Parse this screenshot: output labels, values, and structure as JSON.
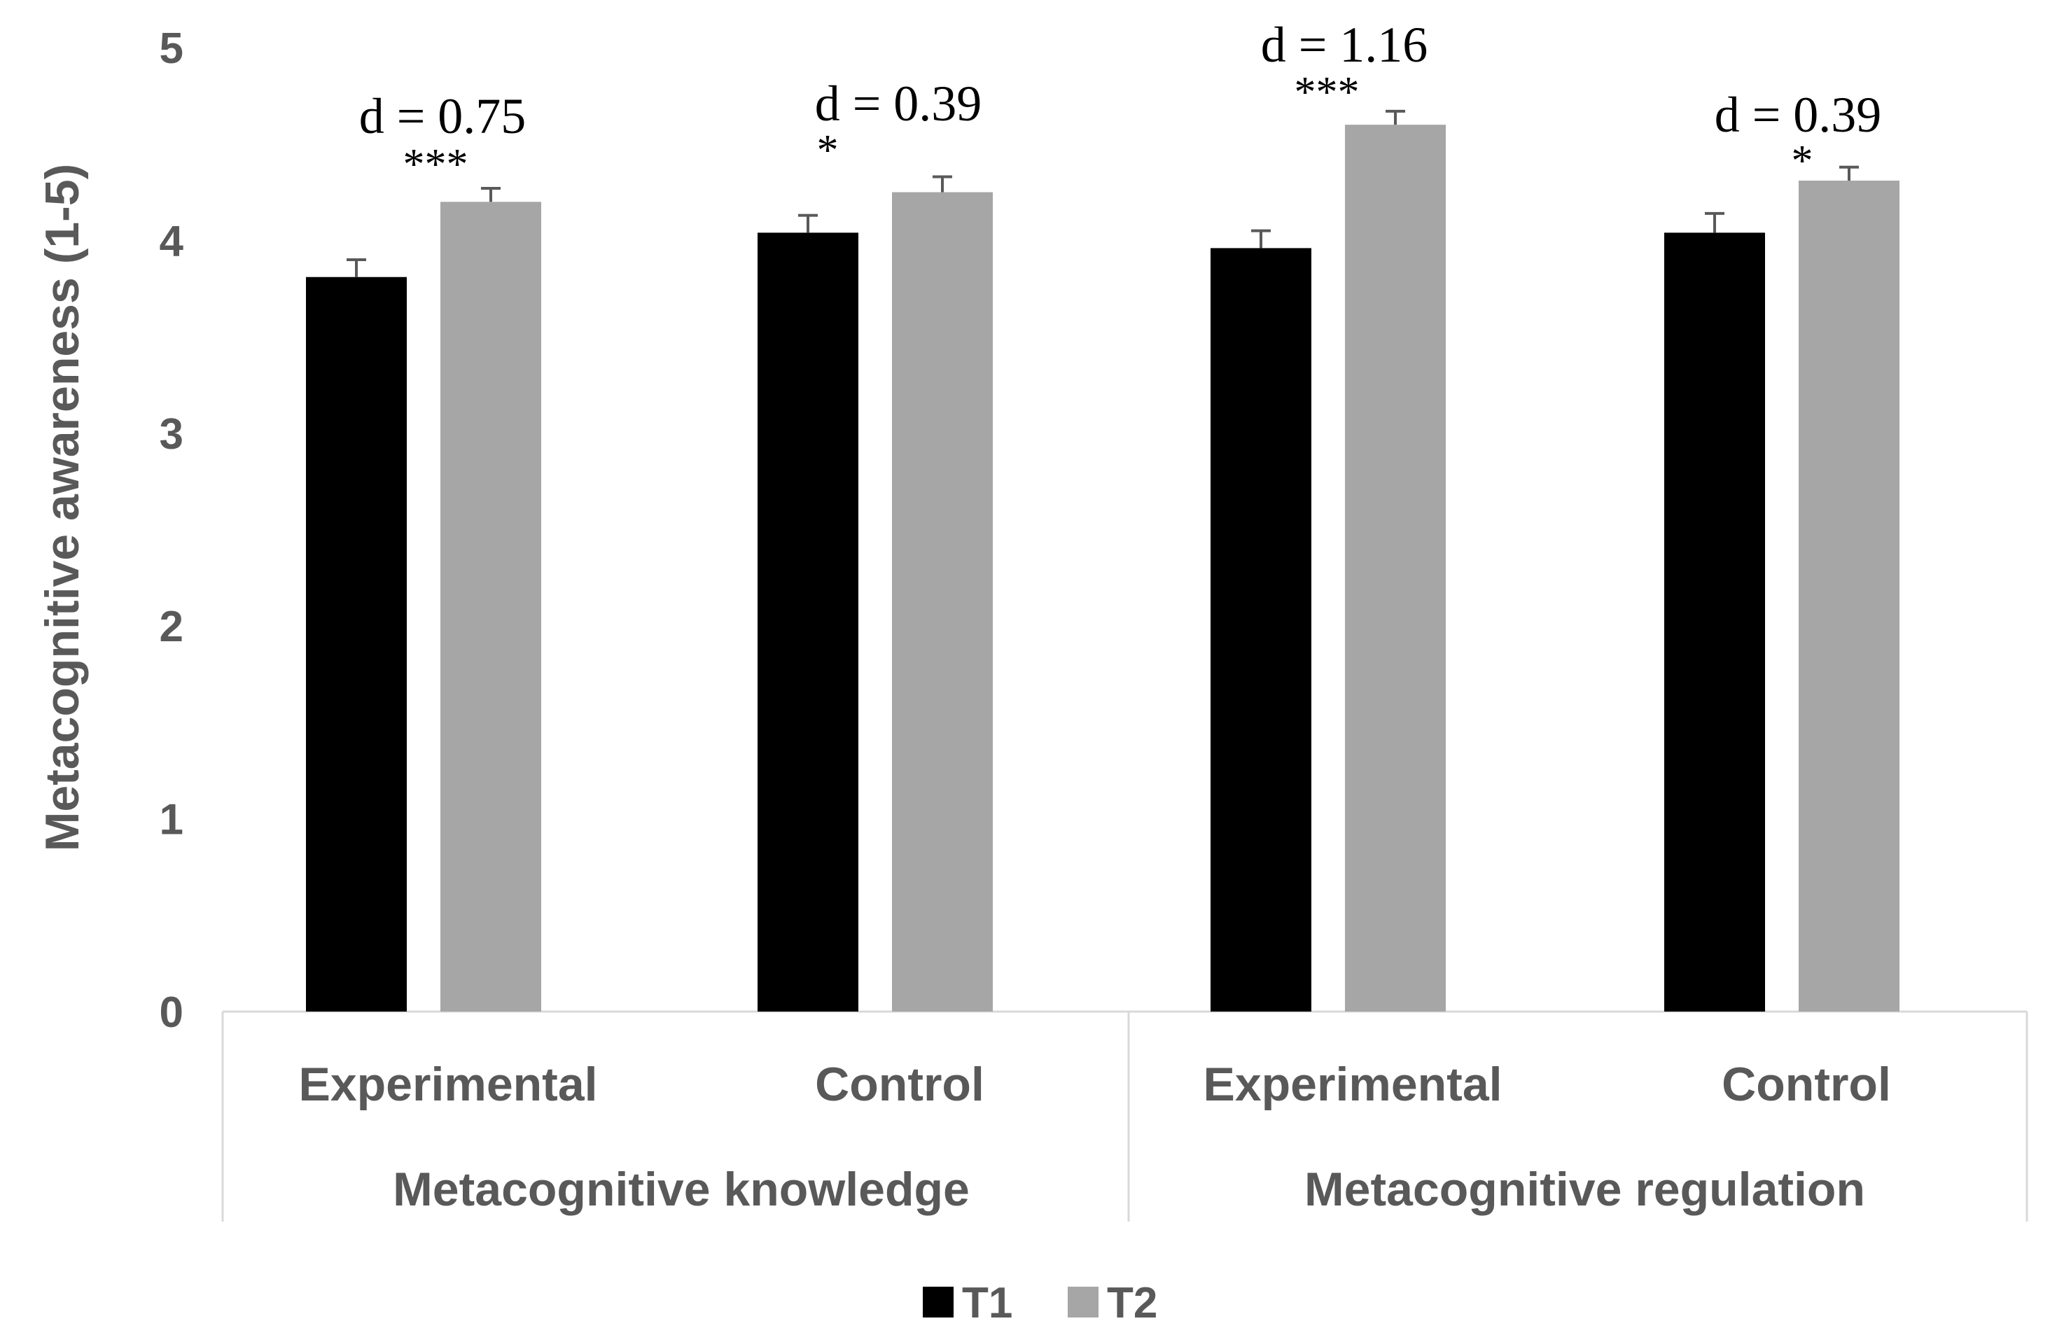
{
  "chart_data": {
    "type": "bar",
    "ylabel": "Metacognitive awareness (1-5)",
    "ylim": [
      0,
      5
    ],
    "yticks": [
      "0",
      "1",
      "2",
      "3",
      "4",
      "5"
    ],
    "categories": [
      "Experimental",
      "Control",
      "Experimental",
      "Control"
    ],
    "groups": [
      {
        "label": "Metacognitive knowledge",
        "categories": [
          "Experimental",
          "Control"
        ]
      },
      {
        "label": "Metacognitive regulation",
        "categories": [
          "Experimental",
          "Control"
        ]
      }
    ],
    "series": [
      {
        "name": "T1",
        "color": "#000000",
        "values": [
          3.81,
          4.04,
          3.96,
          4.04
        ],
        "errors": [
          0.09,
          0.09,
          0.09,
          0.1
        ]
      },
      {
        "name": "T2",
        "color": "#a6a6a6",
        "values": [
          4.2,
          4.25,
          4.6,
          4.31
        ],
        "errors": [
          0.07,
          0.08,
          0.07,
          0.07
        ]
      }
    ],
    "annotations": [
      {
        "effect": "d = 0.75",
        "significance": "***"
      },
      {
        "effect": "d = 0.39",
        "significance": "*"
      },
      {
        "effect": "d = 1.16",
        "significance": "***"
      },
      {
        "effect": "d = 0.39",
        "significance": "*"
      }
    ],
    "legend": {
      "position": "bottom",
      "entries": [
        "T1",
        "T2"
      ]
    }
  }
}
